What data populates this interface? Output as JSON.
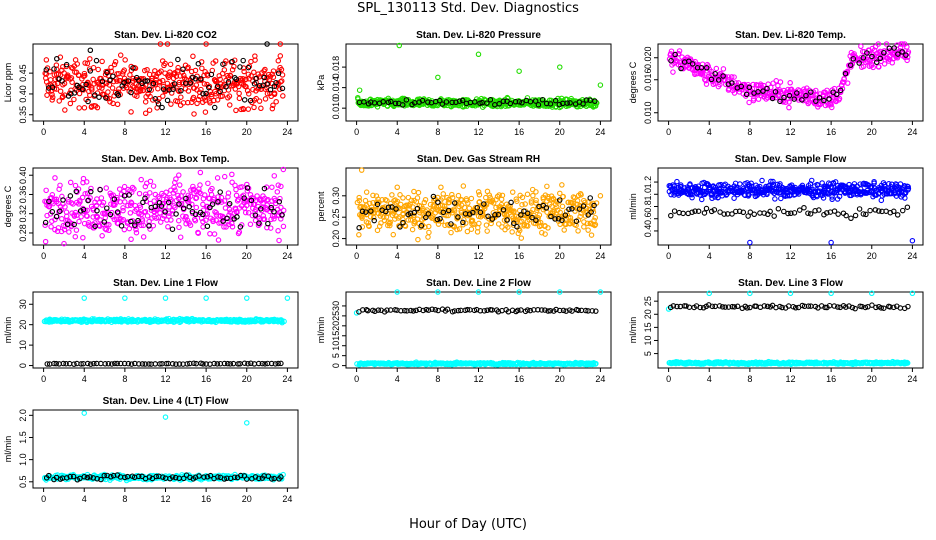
{
  "title": "SPL_130113  Std. Dev. Diagnostics",
  "xlabel": "Hour of Day (UTC)",
  "colors": {
    "black": "#000000",
    "red": "#ff0000",
    "green": "#22dd00",
    "magenta": "#ff00ff",
    "orange": "#ffa500",
    "blue": "#0000ff",
    "cyan": "#00ffff"
  },
  "chart_data": [
    {
      "type": "scatter",
      "title": "Stan. Dev. Li-820 CO2",
      "ylabel": "Licor ppm",
      "xlim": [
        0,
        24
      ],
      "xticks": [
        0,
        4,
        8,
        12,
        16,
        20,
        24
      ],
      "ylim": [
        0.335,
        0.52
      ],
      "yticks": [
        0.35,
        0.4,
        0.45
      ],
      "ytick_labels": [
        "0.35",
        "0.40",
        "0.45"
      ],
      "series": [
        {
          "color": "red",
          "count": 460,
          "y_center": 0.425,
          "y_spread": 0.085,
          "outliers": [
            [
              11.5,
              0.52
            ],
            [
              12.2,
              0.52
            ],
            [
              16.0,
              0.52
            ],
            [
              23.3,
              0.52
            ]
          ]
        },
        {
          "color": "black",
          "count": 85,
          "y_center": 0.425,
          "y_spread": 0.08,
          "outliers": [
            [
              4.6,
              0.505
            ],
            [
              22.0,
              0.52
            ]
          ]
        }
      ]
    },
    {
      "type": "scatter",
      "title": "Stan. Dev. Li-820 Pressure",
      "ylabel": "kPa",
      "xlim": [
        0,
        24
      ],
      "xticks": [
        0,
        4,
        8,
        12,
        16,
        20,
        24
      ],
      "ylim": [
        0.0075,
        0.0225
      ],
      "yticks": [
        0.01,
        0.014,
        0.018
      ],
      "ytick_labels": [
        "0.010",
        "0.014",
        "0.018"
      ],
      "series": [
        {
          "color": "green",
          "count": 520,
          "y_center": 0.011,
          "y_spread": 0.0012,
          "outliers": [
            [
              0.3,
              0.0135
            ],
            [
              4.2,
              0.0222
            ],
            [
              8.0,
              0.016
            ],
            [
              12.0,
              0.0205
            ],
            [
              16.0,
              0.0172
            ],
            [
              20.0,
              0.018
            ],
            [
              24.0,
              0.0145
            ]
          ]
        },
        {
          "color": "black",
          "count": 60,
          "y_center": 0.0112,
          "y_spread": 0.001,
          "outliers": []
        }
      ]
    },
    {
      "type": "scatter",
      "title": "Stan. Dev. Li-820 Temp.",
      "ylabel": "degrees C",
      "xlim": [
        0,
        24
      ],
      "xticks": [
        0,
        4,
        8,
        12,
        16,
        20,
        24
      ],
      "ylim": [
        0.0085,
        0.0225
      ],
      "yticks": [
        0.01,
        0.016,
        0.02
      ],
      "ytick_labels": [
        "0.010",
        "0.016",
        "0.020"
      ],
      "trend": [
        [
          0,
          0.0195
        ],
        [
          2,
          0.019
        ],
        [
          3,
          0.0175
        ],
        [
          6,
          0.0155
        ],
        [
          8,
          0.014
        ],
        [
          11,
          0.0135
        ],
        [
          14,
          0.013
        ],
        [
          16,
          0.0125
        ],
        [
          17,
          0.014
        ],
        [
          18,
          0.0195
        ],
        [
          21,
          0.0205
        ],
        [
          23,
          0.021
        ],
        [
          24,
          0.02
        ]
      ],
      "series": [
        {
          "color": "magenta",
          "count": 420,
          "y_center": 0,
          "y_spread": 0.0028,
          "follow_trend": true,
          "outliers": []
        },
        {
          "color": "black",
          "count": 55,
          "y_center": 0,
          "y_spread": 0.002,
          "follow_trend": true,
          "outliers": []
        }
      ]
    },
    {
      "type": "scatter",
      "title": "Stan. Dev. Amb. Box Temp.",
      "ylabel": "degrees C",
      "xlim": [
        0,
        24
      ],
      "xticks": [
        0,
        4,
        8,
        12,
        16,
        20,
        24
      ],
      "ylim": [
        0.255,
        0.415
      ],
      "yticks": [
        0.28,
        0.32,
        0.36,
        0.4
      ],
      "ytick_labels": [
        "0.28",
        "0.32",
        "0.36",
        "0.40"
      ],
      "series": [
        {
          "color": "magenta",
          "count": 480,
          "y_center": 0.332,
          "y_spread": 0.085,
          "outliers": [
            [
              23.6,
              0.412
            ],
            [
              0.2,
              0.262
            ]
          ]
        },
        {
          "color": "black",
          "count": 70,
          "y_center": 0.33,
          "y_spread": 0.06,
          "outliers": []
        }
      ]
    },
    {
      "type": "scatter",
      "title": "Stan. Dev. Gas Stream RH",
      "ylabel": "percent",
      "xlim": [
        0,
        24
      ],
      "xticks": [
        0,
        4,
        8,
        12,
        16,
        20,
        24
      ],
      "ylim": [
        0.185,
        0.365
      ],
      "yticks": [
        0.2,
        0.25,
        0.3
      ],
      "ytick_labels": [
        "0.20",
        "0.25",
        "0.30"
      ],
      "series": [
        {
          "color": "orange",
          "count": 520,
          "y_center": 0.262,
          "y_spread": 0.075,
          "outliers": [
            [
              0.5,
              0.36
            ],
            [
              4.0,
              0.32
            ],
            [
              8.3,
              0.32
            ],
            [
              24.0,
              0.3
            ]
          ]
        },
        {
          "color": "black",
          "count": 65,
          "y_center": 0.255,
          "y_spread": 0.05,
          "outliers": [
            [
              8.0,
              0.285
            ],
            [
              20.0,
              0.29
            ],
            [
              23.0,
              0.295
            ]
          ]
        }
      ]
    },
    {
      "type": "scatter",
      "title": "Stan. Dev. Sample Flow",
      "ylabel": "ml/min",
      "xlim": [
        0,
        24
      ],
      "xticks": [
        0,
        4,
        8,
        12,
        16,
        20,
        24
      ],
      "ylim": [
        0.17,
        1.43
      ],
      "yticks": [
        0.4,
        0.6,
        0.8,
        1.0,
        1.2
      ],
      "ytick_labels": [
        "0.4",
        "0.6",
        "0.8",
        "1.0",
        "1.2"
      ],
      "series": [
        {
          "color": "blue",
          "count": 480,
          "y_center": 1.07,
          "y_spread": 0.18,
          "outliers": [
            [
              8.0,
              0.21
            ],
            [
              16.0,
              0.21
            ],
            [
              24.0,
              0.24
            ]
          ]
        },
        {
          "color": "black",
          "count": 60,
          "y_center": 0.7,
          "y_spread": 0.1,
          "outliers": []
        }
      ]
    },
    {
      "type": "scatter",
      "title": "Stan. Dev. Line 1 Flow",
      "ylabel": "ml/min",
      "xlim": [
        0,
        24
      ],
      "xticks": [
        0,
        4,
        8,
        12,
        16,
        20,
        24
      ],
      "ylim": [
        -1.2,
        36
      ],
      "yticks": [
        0,
        10,
        20,
        30
      ],
      "ytick_labels": [
        "0",
        "10",
        "20",
        "30"
      ],
      "series": [
        {
          "color": "cyan",
          "count": 360,
          "y_center": 22.0,
          "y_spread": 1.2,
          "outliers": [
            [
              4.0,
              33.0
            ],
            [
              8.0,
              33.0
            ],
            [
              12.0,
              33.0
            ],
            [
              16.0,
              33.0
            ],
            [
              20.0,
              33.0
            ],
            [
              24.0,
              33.0
            ]
          ]
        },
        {
          "color": "black",
          "count": 70,
          "y_center": 0.9,
          "y_spread": 0.4,
          "outliers": []
        }
      ]
    },
    {
      "type": "scatter",
      "title": "Stan. Dev. Line 2 Flow",
      "ylabel": "ml/min",
      "xlim": [
        0,
        24
      ],
      "xticks": [
        0,
        4,
        8,
        12,
        16,
        20,
        24
      ],
      "ylim": [
        -1.2,
        37
      ],
      "yticks": [
        0,
        5,
        10,
        15,
        20,
        25,
        30
      ],
      "ytick_labels": [
        "0",
        "5",
        "10",
        "15",
        "20",
        "25",
        "30"
      ],
      "series": [
        {
          "color": "cyan",
          "count": 360,
          "y_center": 1.0,
          "y_spread": 0.8,
          "outliers": [
            [
              0.0,
              26.5
            ],
            [
              4.0,
              37.0
            ],
            [
              8.0,
              37.0
            ],
            [
              12.0,
              37.0
            ],
            [
              16.0,
              37.0
            ],
            [
              20.0,
              37.0
            ],
            [
              24.0,
              37.0
            ]
          ]
        },
        {
          "color": "black",
          "count": 75,
          "y_center": 27.8,
          "y_spread": 1.0,
          "outliers": []
        }
      ]
    },
    {
      "type": "scatter",
      "title": "Stan. Dev. Line 3 Flow",
      "ylabel": "ml/min",
      "xlim": [
        0,
        24
      ],
      "xticks": [
        0,
        4,
        8,
        12,
        16,
        20,
        24
      ],
      "ylim": [
        -0.5,
        28.5
      ],
      "yticks": [
        5,
        10,
        15,
        20,
        25
      ],
      "ytick_labels": [
        "5",
        "10",
        "15",
        "20",
        "25"
      ],
      "series": [
        {
          "color": "cyan",
          "count": 360,
          "y_center": 1.4,
          "y_spread": 0.6,
          "outliers": [
            [
              0.0,
              22.0
            ],
            [
              4.0,
              28.0
            ],
            [
              8.0,
              28.0
            ],
            [
              12.0,
              28.0
            ],
            [
              16.0,
              28.0
            ],
            [
              20.0,
              28.0
            ],
            [
              24.0,
              28.0
            ]
          ]
        },
        {
          "color": "black",
          "count": 75,
          "y_center": 22.8,
          "y_spread": 0.9,
          "outliers": []
        }
      ]
    },
    {
      "type": "scatter",
      "title": "Stan. Dev. Line 4 (LT) Flow",
      "ylabel": "ml/min",
      "xlim": [
        0,
        24
      ],
      "xticks": [
        0,
        4,
        8,
        12,
        16,
        20,
        24
      ],
      "ylim": [
        0.36,
        2.12
      ],
      "yticks": [
        0.5,
        1.0,
        1.5,
        2.0
      ],
      "ytick_labels": [
        "0.5",
        "1.0",
        "1.5",
        "2.0"
      ],
      "series": [
        {
          "color": "cyan",
          "count": 330,
          "y_center": 0.6,
          "y_spread": 0.08,
          "outliers": [
            [
              4.0,
              2.05
            ],
            [
              12.0,
              1.96
            ],
            [
              20.0,
              1.83
            ]
          ]
        },
        {
          "color": "black",
          "count": 70,
          "y_center": 0.6,
          "y_spread": 0.07,
          "outliers": []
        }
      ]
    }
  ]
}
